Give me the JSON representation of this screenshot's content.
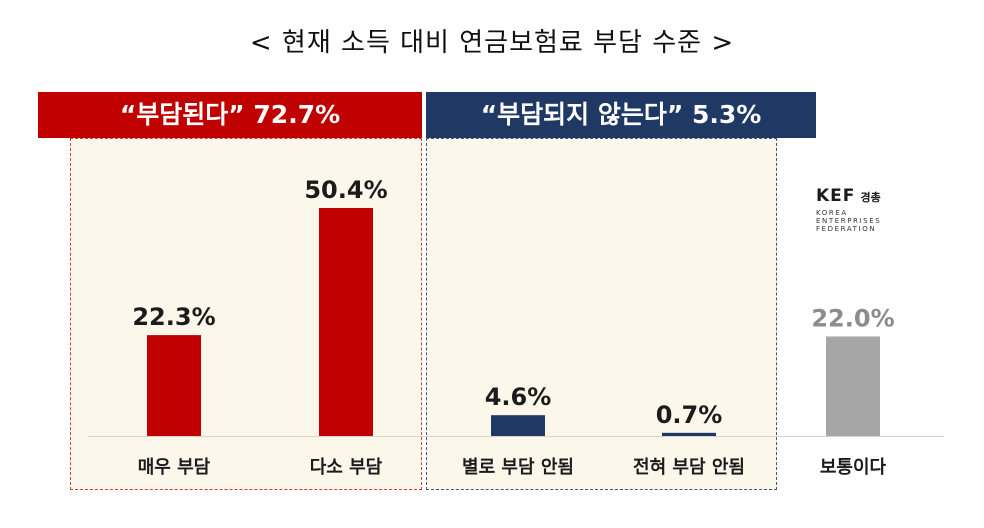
{
  "title": "< 현재 소득 대비 연금보험료 부담 수준 >",
  "groups": {
    "burden": {
      "label": "“부담된다” 72.7%",
      "color": "#c00000"
    },
    "no_burden": {
      "label": "“부담되지 않는다” 5.3%",
      "color": "#1f3864"
    }
  },
  "logo": {
    "name": "KEF",
    "korean": "경총",
    "subtitle": [
      "KOREA",
      "ENTERPRISES",
      "FEDERATION"
    ]
  },
  "chart_data": {
    "type": "bar",
    "title": "< 현재 소득 대비 연금보험료 부담 수준 >",
    "categories": [
      "매우 부담",
      "다소 부담",
      "별로 부담 안됨",
      "전혀 부담 안됨",
      "보통이다"
    ],
    "values": [
      22.3,
      50.4,
      4.6,
      0.7,
      22.0
    ],
    "value_labels": [
      "22.3%",
      "50.4%",
      "4.6%",
      "0.7%",
      "22.0%"
    ],
    "unit": "%",
    "ylim": [
      0,
      60
    ],
    "grid": false,
    "legend": "none",
    "colors": [
      "#c00000",
      "#c00000",
      "#1f3864",
      "#1f3864",
      "#a6a6a6"
    ]
  }
}
